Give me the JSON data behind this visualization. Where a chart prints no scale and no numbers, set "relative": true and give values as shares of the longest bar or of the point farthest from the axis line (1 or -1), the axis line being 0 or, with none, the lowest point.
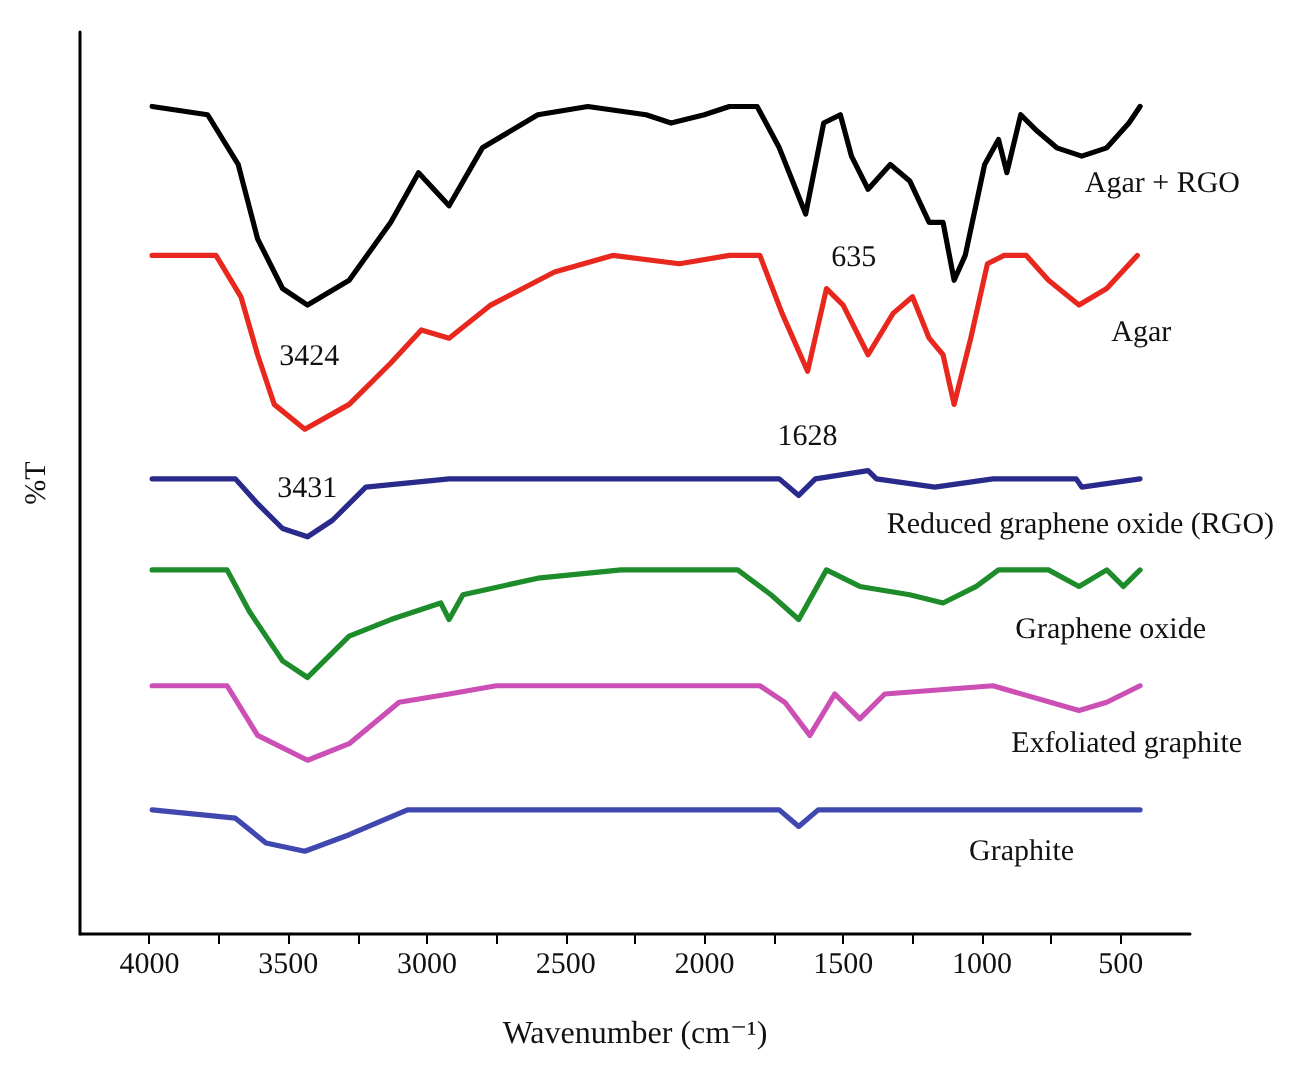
{
  "chart_data": {
    "type": "line",
    "relative": true,
    "xlabel": "Wavenumber (cm⁻¹)",
    "ylabel": "%T",
    "xlim": [
      4250,
      250
    ],
    "xticks": [
      4000,
      {
        "value": 3750,
        "label": null
      },
      3500,
      {
        "value": 3250,
        "label": null
      },
      3000,
      {
        "value": 2750,
        "label": null
      },
      2500,
      {
        "value": 2250,
        "label": null
      },
      2000,
      {
        "value": 1750,
        "label": null
      },
      1500,
      {
        "value": 1250,
        "label": null
      },
      1000,
      {
        "value": 750,
        "label": null
      },
      500
    ],
    "legend": false,
    "marker": "none",
    "line_style": "solid",
    "series": [
      {
        "name": "Agar + RGO",
        "color": "#000000",
        "x": [
          3990,
          3790,
          3680,
          3610,
          3520,
          3430,
          3280,
          3130,
          3030,
          2920,
          2800,
          2600,
          2420,
          2210,
          2120,
          2000,
          1910,
          1810,
          1730,
          1635,
          1570,
          1510,
          1470,
          1410,
          1330,
          1260,
          1190,
          1140,
          1100,
          1060,
          990,
          940,
          910,
          860,
          800,
          730,
          640,
          550,
          470,
          430
        ],
        "values": [
          1.0,
          0.99,
          0.93,
          0.84,
          0.78,
          0.76,
          0.79,
          0.86,
          0.92,
          0.88,
          0.95,
          0.99,
          1.0,
          0.99,
          0.98,
          0.99,
          1.0,
          1.0,
          0.95,
          0.87,
          0.98,
          0.99,
          0.94,
          0.9,
          0.93,
          0.91,
          0.86,
          0.86,
          0.79,
          0.82,
          0.93,
          0.96,
          0.92,
          0.99,
          0.97,
          0.95,
          0.94,
          0.95,
          0.98,
          1.0
        ]
      },
      {
        "name": "Agar",
        "color": "#e8281e",
        "x": [
          3990,
          3760,
          3670,
          3610,
          3550,
          3440,
          3280,
          3130,
          3020,
          2920,
          2770,
          2540,
          2330,
          2090,
          1910,
          1800,
          1720,
          1628,
          1560,
          1500,
          1410,
          1320,
          1250,
          1190,
          1140,
          1100,
          1040,
          980,
          920,
          840,
          760,
          650,
          550,
          440
        ],
        "values": [
          0.82,
          0.82,
          0.77,
          0.7,
          0.64,
          0.61,
          0.64,
          0.69,
          0.73,
          0.72,
          0.76,
          0.8,
          0.82,
          0.81,
          0.82,
          0.82,
          0.75,
          0.68,
          0.78,
          0.76,
          0.7,
          0.75,
          0.77,
          0.72,
          0.7,
          0.64,
          0.72,
          0.81,
          0.82,
          0.82,
          0.79,
          0.76,
          0.78,
          0.82
        ]
      },
      {
        "name": "Reduced graphene oxide (RGO)",
        "color": "#2a2a8c",
        "x": [
          3990,
          3690,
          3610,
          3520,
          3430,
          3340,
          3220,
          2920,
          1730,
          1660,
          1600,
          1410,
          1380,
          1170,
          960,
          660,
          640,
          430
        ],
        "values": [
          0.55,
          0.55,
          0.52,
          0.49,
          0.48,
          0.5,
          0.54,
          0.55,
          0.55,
          0.53,
          0.55,
          0.56,
          0.55,
          0.54,
          0.55,
          0.55,
          0.54,
          0.55
        ]
      },
      {
        "name": "Graphene oxide",
        "color": "#1e8c2a",
        "x": [
          3990,
          3720,
          3640,
          3520,
          3430,
          3280,
          3130,
          2950,
          2920,
          2870,
          2600,
          2300,
          1880,
          1760,
          1660,
          1560,
          1440,
          1260,
          1140,
          1020,
          940,
          760,
          650,
          550,
          490,
          430
        ],
        "values": [
          0.44,
          0.44,
          0.39,
          0.33,
          0.31,
          0.36,
          0.38,
          0.4,
          0.38,
          0.41,
          0.43,
          0.44,
          0.44,
          0.41,
          0.38,
          0.44,
          0.42,
          0.41,
          0.4,
          0.42,
          0.44,
          0.44,
          0.42,
          0.44,
          0.42,
          0.44
        ]
      },
      {
        "name": "Exfoliated graphite",
        "color": "#cc4fb5",
        "x": [
          3990,
          3720,
          3610,
          3430,
          3280,
          3100,
          2920,
          2750,
          1800,
          1710,
          1620,
          1530,
          1440,
          1350,
          960,
          650,
          550,
          430
        ],
        "values": [
          0.3,
          0.3,
          0.24,
          0.21,
          0.23,
          0.28,
          0.29,
          0.3,
          0.3,
          0.28,
          0.24,
          0.29,
          0.26,
          0.29,
          0.3,
          0.27,
          0.28,
          0.3
        ]
      },
      {
        "name": "Graphite",
        "color": "#4048b0",
        "x": [
          3990,
          3690,
          3580,
          3440,
          3280,
          3070,
          1730,
          1660,
          1590,
          1410,
          1380,
          430
        ],
        "values": [
          0.15,
          0.14,
          0.11,
          0.1,
          0.12,
          0.15,
          0.15,
          0.13,
          0.15,
          0.15,
          0.15,
          0.15
        ]
      }
    ],
    "annotations": [
      {
        "text": "3424",
        "x": 3424,
        "y": 0.76
      },
      {
        "text": "635",
        "x": 1635,
        "y": 0.87
      },
      {
        "text": "1628",
        "x": 1628,
        "y": 0.68
      },
      {
        "text": "3431",
        "x": 3431,
        "y": 0.61
      }
    ]
  }
}
